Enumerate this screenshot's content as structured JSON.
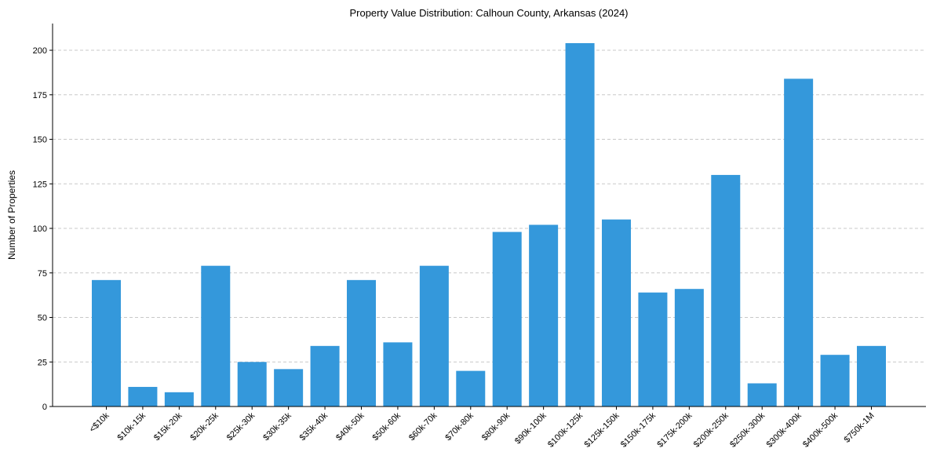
{
  "chart_data": {
    "type": "bar",
    "title": "Property Value Distribution: Calhoun County, Arkansas (2024)",
    "xlabel": "",
    "ylabel": "Number of Properties",
    "ylim": [
      0,
      215
    ],
    "yticks": [
      0,
      25,
      50,
      75,
      100,
      125,
      150,
      175,
      200
    ],
    "grid": "y-dashed",
    "bar_color": "#3498db",
    "categories": [
      "<$10k",
      "$10k-15k",
      "$15k-20k",
      "$20k-25k",
      "$25k-30k",
      "$30k-35k",
      "$35k-40k",
      "$40k-50k",
      "$50k-60k",
      "$60k-70k",
      "$70k-80k",
      "$80k-90k",
      "$90k-100k",
      "$100k-125k",
      "$125k-150k",
      "$150k-175k",
      "$175k-200k",
      "$200k-250k",
      "$250k-300k",
      "$300k-400k",
      "$400k-500k",
      "$750k-1M"
    ],
    "values": [
      71,
      11,
      8,
      79,
      25,
      21,
      34,
      71,
      36,
      79,
      20,
      98,
      102,
      204,
      105,
      64,
      66,
      130,
      13,
      184,
      29,
      34
    ]
  }
}
